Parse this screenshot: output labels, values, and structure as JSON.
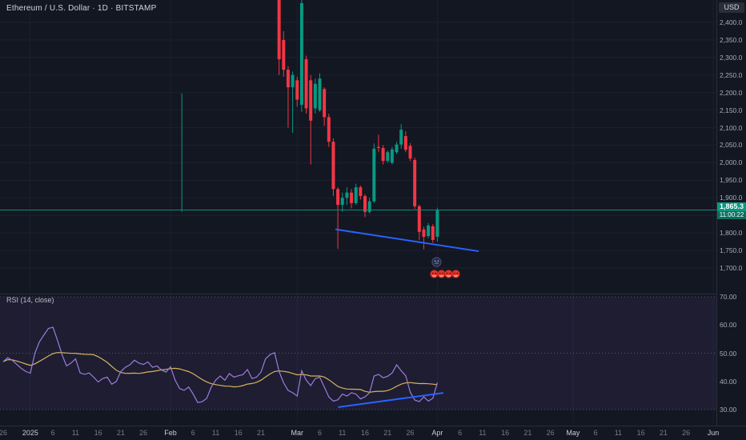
{
  "header": {
    "symbol_title": "Ethereum / U.S. Dollar · 1D · BITSTAMP",
    "currency_button": "USD"
  },
  "colors": {
    "up": "#089981",
    "down": "#f23645",
    "drawing": "#2962ff",
    "rsi_line": "#9b7ddb",
    "rsi_ma": "#d7b35c",
    "rsi_band": "rgba(126,87,194,0.10)",
    "grid": "#1c2030",
    "level_dash": "#9598a1",
    "separator": "#2a2e39",
    "last_price_bg": "#089981",
    "countdown_bg": "#0b6e5d"
  },
  "price_panel": {
    "axis": {
      "ticks": [
        {
          "v": 2400,
          "t": "2,400.0"
        },
        {
          "v": 2350,
          "t": "2,350.0"
        },
        {
          "v": 2300,
          "t": "2,300.0"
        },
        {
          "v": 2250,
          "t": "2,250.0"
        },
        {
          "v": 2200,
          "t": "2,200.0"
        },
        {
          "v": 2150,
          "t": "2,150.0"
        },
        {
          "v": 2100,
          "t": "2,100.0"
        },
        {
          "v": 2050,
          "t": "2,050.0"
        },
        {
          "v": 2000,
          "t": "2,000.0"
        },
        {
          "v": 1950,
          "t": "1,950.0"
        },
        {
          "v": 1900,
          "t": "1,900.0"
        },
        {
          "v": 1850,
          "t": "1,850.0"
        },
        {
          "v": 1800,
          "t": "1,800.0"
        },
        {
          "v": 1750,
          "t": "1,750.0"
        },
        {
          "v": 1700,
          "t": "1,700.0"
        }
      ]
    },
    "last_price": {
      "value": "1,865.3",
      "price_num": 1865.3,
      "countdown": "11:00:22"
    },
    "candles": [
      [
        61,
        2505,
        2530,
        2250,
        2295
      ],
      [
        62,
        2350,
        2375,
        2245,
        2265
      ],
      [
        63,
        2265,
        2275,
        2100,
        2215
      ],
      [
        64,
        2215,
        2260,
        2085,
        2250
      ],
      [
        65,
        2235,
        2245,
        2160,
        2180
      ],
      [
        66,
        2165,
        2520,
        2145,
        2455
      ],
      [
        67,
        2295,
        2305,
        2140,
        2155
      ],
      [
        68,
        2235,
        2250,
        1995,
        2120
      ],
      [
        69,
        2155,
        2240,
        2140,
        2225
      ],
      [
        70,
        2150,
        2255,
        2145,
        2240
      ],
      [
        71,
        2210,
        2215,
        2105,
        2130
      ],
      [
        72,
        2130,
        2140,
        2045,
        2060
      ],
      [
        73,
        2060,
        2070,
        1905,
        1925
      ],
      [
        74,
        1925,
        1930,
        1755,
        1880
      ],
      [
        75,
        1880,
        1915,
        1860,
        1900
      ],
      [
        76,
        1900,
        1930,
        1880,
        1915
      ],
      [
        77,
        1915,
        1925,
        1870,
        1885
      ],
      [
        78,
        1885,
        1940,
        1880,
        1930
      ],
      [
        79,
        1930,
        1935,
        1895,
        1905
      ],
      [
        80,
        1905,
        1910,
        1845,
        1860
      ],
      [
        81,
        1860,
        1900,
        1855,
        1890
      ],
      [
        82,
        1890,
        2055,
        1885,
        2040
      ],
      [
        83,
        2045,
        2080,
        2030,
        2042
      ],
      [
        84,
        2042,
        2050,
        1995,
        2005
      ],
      [
        85,
        2005,
        2035,
        2000,
        2030
      ],
      [
        86,
        2000,
        2045,
        1995,
        2038
      ],
      [
        87,
        2030,
        2060,
        2025,
        2052
      ],
      [
        88,
        2052,
        2110,
        2040,
        2094
      ],
      [
        89,
        2076,
        2090,
        2030,
        2037
      ],
      [
        90,
        2048,
        2056,
        2005,
        2012
      ],
      [
        91,
        2008,
        2015,
        1868,
        1876
      ],
      [
        92,
        1876,
        1880,
        1780,
        1803
      ],
      [
        93,
        1810,
        1818,
        1753,
        1789
      ],
      [
        94,
        1791,
        1828,
        1785,
        1821
      ],
      [
        95,
        1819,
        1825,
        1772,
        1780
      ],
      [
        96,
        1789,
        1872,
        1775,
        1865.3
      ]
    ],
    "stray_wick": {
      "day": 39.5,
      "from": 2197,
      "to": 1860
    },
    "trendline": {
      "d1": 73.6,
      "p1": 1810,
      "d2": 105,
      "p2": 1748
    }
  },
  "rsi_panel": {
    "label": "RSI (14, close)",
    "ticks": [
      {
        "v": 70,
        "t": "70.00"
      },
      {
        "v": 60,
        "t": "60.00"
      },
      {
        "v": 50,
        "t": "50.00"
      },
      {
        "v": 40,
        "t": "40.00"
      },
      {
        "v": 30,
        "t": "30.00"
      }
    ],
    "levels": [
      70,
      50,
      30
    ],
    "ma_window": 14,
    "values": [
      47,
      48.4,
      47.5,
      46,
      44.6,
      43.5,
      42.9,
      50,
      54,
      56.5,
      58.8,
      59.2,
      54.6,
      49.5,
      45.5,
      46.5,
      48,
      43,
      42.5,
      43,
      41.5,
      39.8,
      41,
      41.5,
      39,
      40,
      43.5,
      45,
      45.9,
      47.5,
      46.5,
      46,
      46.9,
      45,
      45.5,
      44,
      43.3,
      45.2,
      40.5,
      37.5,
      36.8,
      38,
      35.5,
      32.5,
      32.8,
      34,
      38,
      40.5,
      41.9,
      40.4,
      42.8,
      41.5,
      42,
      42.4,
      44.2,
      41,
      41.5,
      43.3,
      48,
      49.5,
      50.2,
      43.5,
      39.5,
      36.8,
      36,
      34.8,
      43.8,
      40.4,
      38.5,
      41,
      41.5,
      38,
      34.5,
      33,
      33.5,
      35.5,
      34.8,
      36,
      35.5,
      33.8,
      34.5,
      36,
      41.9,
      42.5,
      41.3,
      41.8,
      43,
      45.9,
      43.8,
      42,
      36.2,
      33.4,
      32.8,
      34.5,
      33,
      34,
      39.6
    ],
    "trendline": {
      "d1": 74.2,
      "v1": 30.9,
      "d2": 97.2,
      "v2": 35.9
    }
  },
  "time_axis": {
    "ticks": [
      {
        "label": "26",
        "day": 0,
        "major": false
      },
      {
        "label": "2025",
        "day": 6,
        "major": true
      },
      {
        "label": "6",
        "day": 11,
        "major": false
      },
      {
        "label": "11",
        "day": 16,
        "major": false
      },
      {
        "label": "16",
        "day": 21,
        "major": false
      },
      {
        "label": "21",
        "day": 26,
        "major": false
      },
      {
        "label": "26",
        "day": 31,
        "major": false
      },
      {
        "label": "Feb",
        "day": 37,
        "major": true
      },
      {
        "label": "6",
        "day": 42,
        "major": false
      },
      {
        "label": "11",
        "day": 47,
        "major": false
      },
      {
        "label": "16",
        "day": 52,
        "major": false
      },
      {
        "label": "21",
        "day": 57,
        "major": false
      },
      {
        "label": "Mar",
        "day": 65,
        "major": true
      },
      {
        "label": "6",
        "day": 70,
        "major": false
      },
      {
        "label": "11",
        "day": 75,
        "major": false
      },
      {
        "label": "16",
        "day": 80,
        "major": false
      },
      {
        "label": "21",
        "day": 85,
        "major": false
      },
      {
        "label": "26",
        "day": 90,
        "major": false
      },
      {
        "label": "Apr",
        "day": 96,
        "major": true
      },
      {
        "label": "6",
        "day": 101,
        "major": false
      },
      {
        "label": "11",
        "day": 106,
        "major": false
      },
      {
        "label": "16",
        "day": 111,
        "major": false
      },
      {
        "label": "21",
        "day": 116,
        "major": false
      },
      {
        "label": "26",
        "day": 121,
        "major": false
      },
      {
        "label": "May",
        "day": 126,
        "major": true
      },
      {
        "label": "6",
        "day": 131,
        "major": false
      },
      {
        "label": "11",
        "day": 136,
        "major": false
      },
      {
        "label": "16",
        "day": 141,
        "major": false
      },
      {
        "label": "21",
        "day": 146,
        "major": false
      },
      {
        "label": "26",
        "day": 151,
        "major": false
      },
      {
        "label": "Jun",
        "day": 157,
        "major": true
      }
    ]
  }
}
